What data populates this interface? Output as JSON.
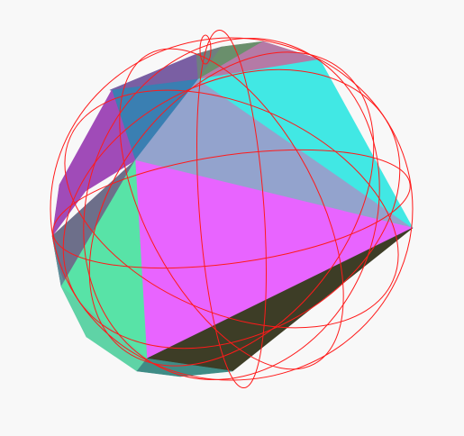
{
  "scene": {
    "background": "#f8f8f8",
    "object": "convex-polyhedron",
    "overlay": "circumscribed-great-circles",
    "circle_color": "#ff1a1a"
  },
  "faces": [
    {
      "name": "face-top-left-violet",
      "color": "#7a5fa3"
    },
    {
      "name": "face-top-gray-small",
      "color": "#6e7f80"
    },
    {
      "name": "face-top-olive",
      "color": "#6a8f6c"
    },
    {
      "name": "face-top-rose",
      "color": "#b57aa6"
    },
    {
      "name": "face-top-blue",
      "color": "#3a7fb2"
    },
    {
      "name": "face-upper-lavender",
      "color": "#93a3cd"
    },
    {
      "name": "face-upper-cyan",
      "color": "#41e8e4"
    },
    {
      "name": "face-center-magenta",
      "color": "#e864ff"
    },
    {
      "name": "face-bottom-olive-dark",
      "color": "#3d3d26"
    },
    {
      "name": "face-left-purple",
      "color": "#a04bb8"
    },
    {
      "name": "face-left-slate",
      "color": "#6d6f8a"
    },
    {
      "name": "face-left-teal",
      "color": "#5d8f9a"
    },
    {
      "name": "face-left-mint",
      "color": "#58e3a7"
    },
    {
      "name": "face-bottom-mint",
      "color": "#5fd3a6"
    },
    {
      "name": "face-bottom-teal",
      "color": "#3f8c86"
    }
  ]
}
